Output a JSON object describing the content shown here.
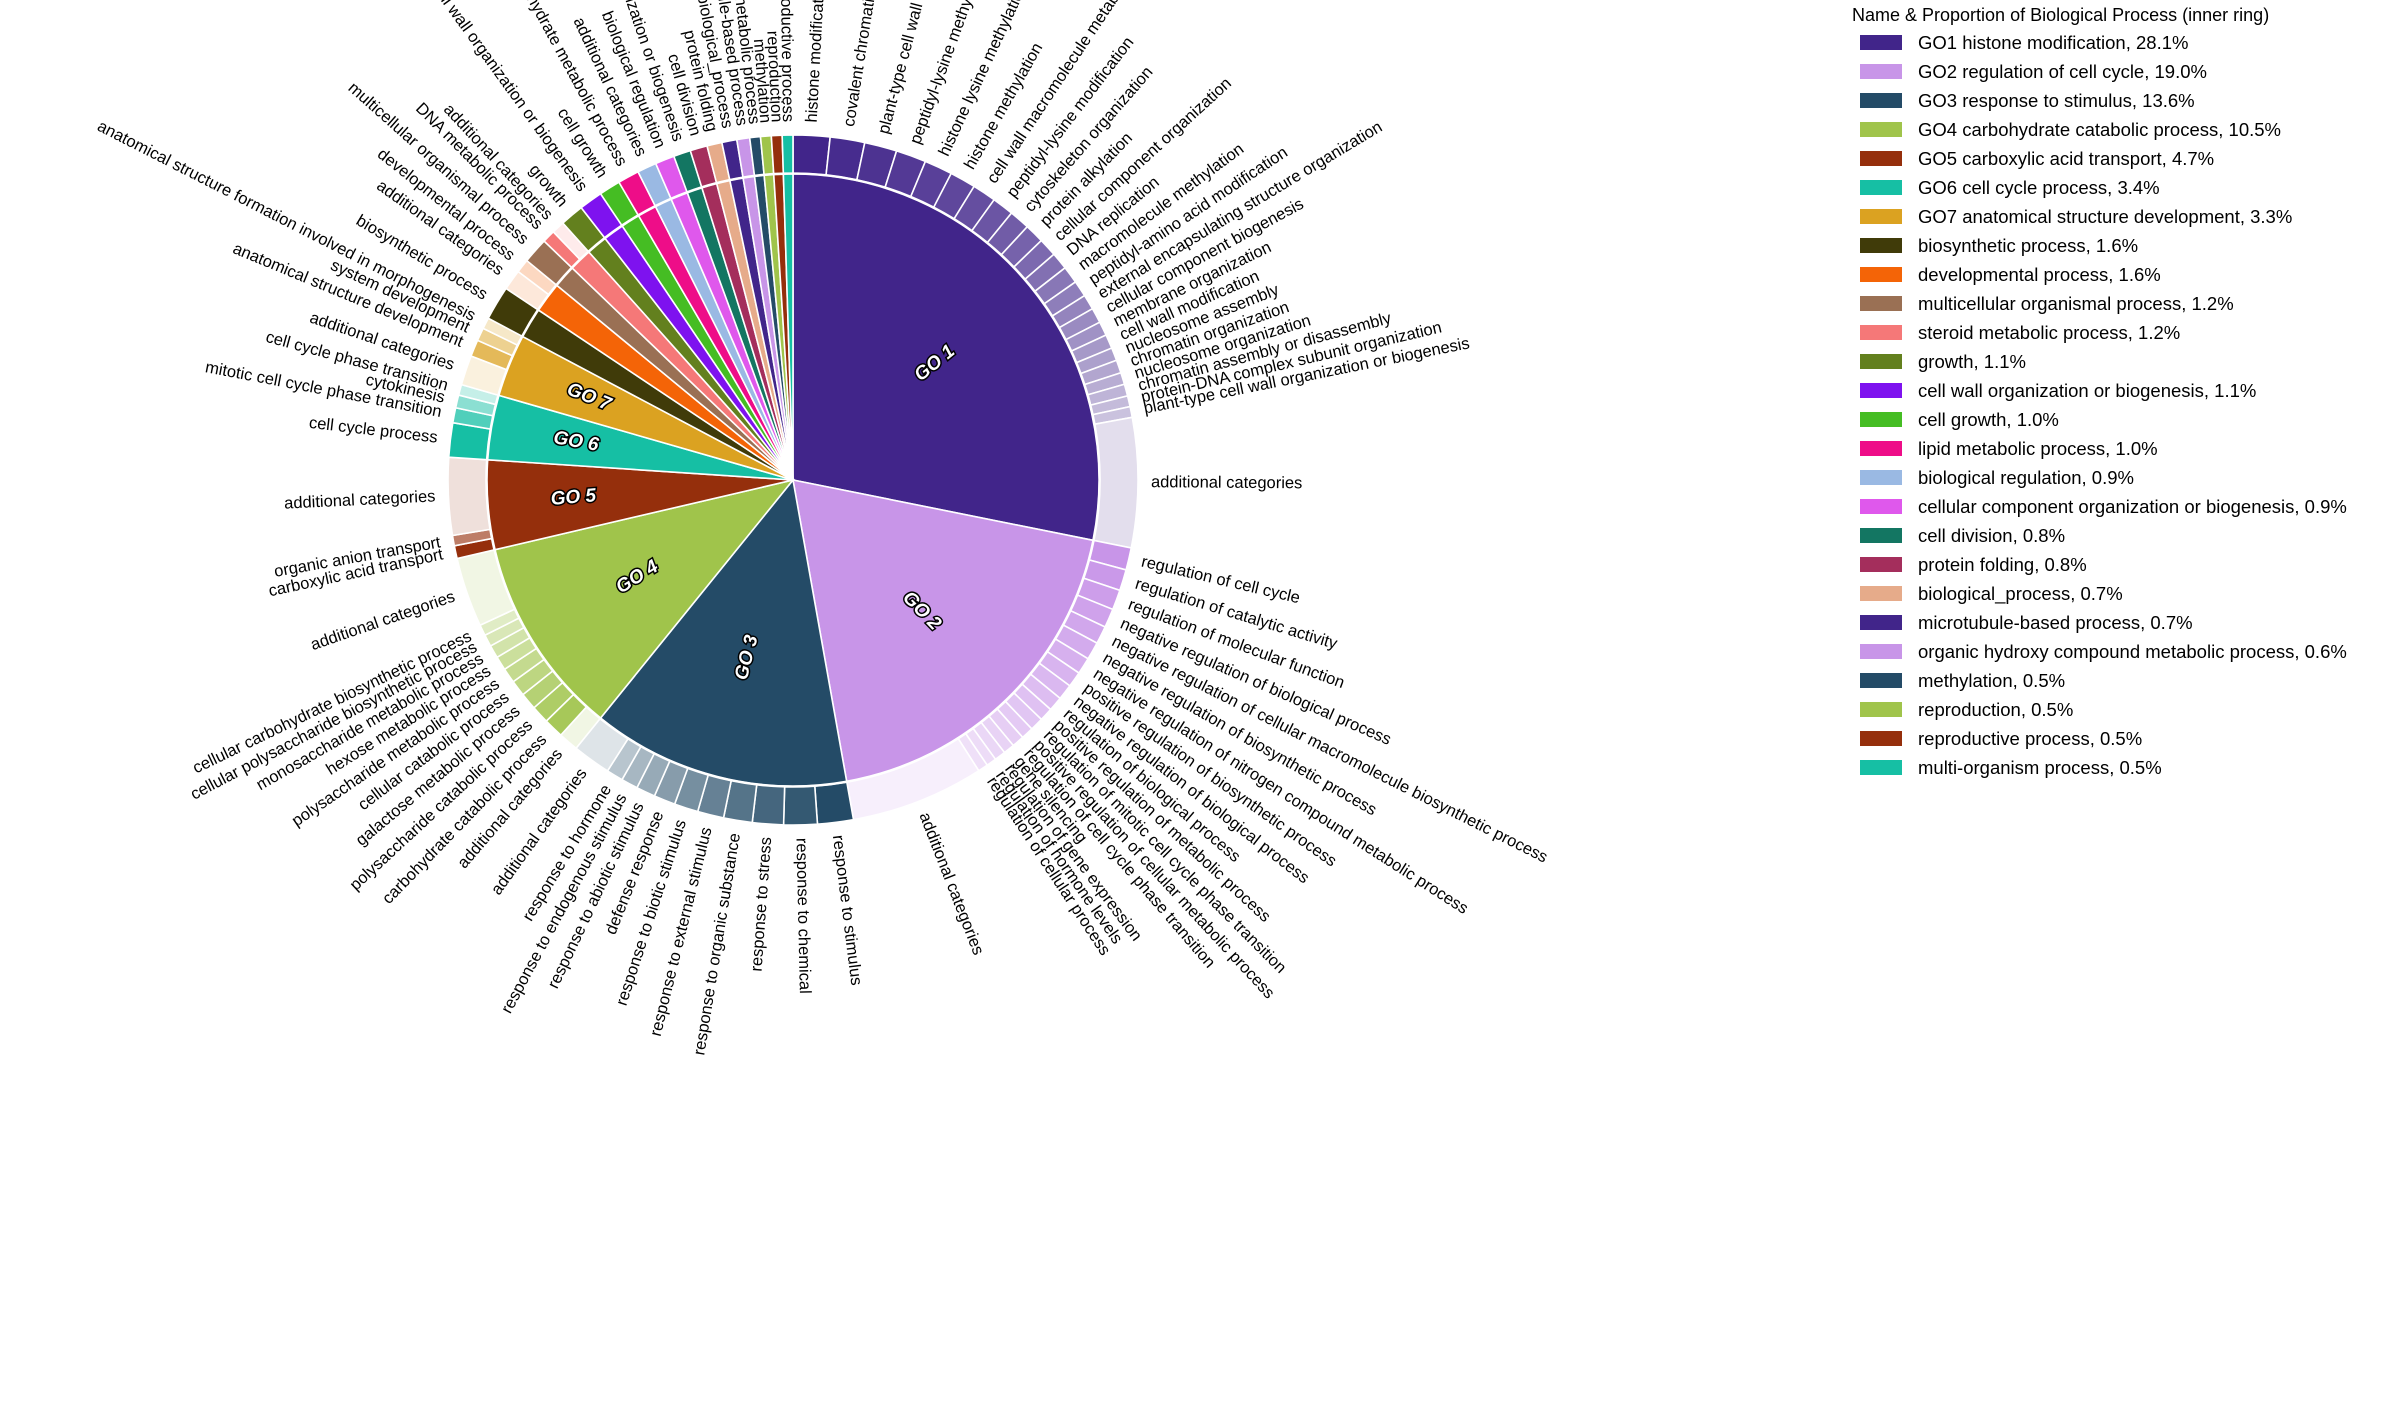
{
  "legend": {
    "title": "Name & Proportion of Biological Process (inner ring)"
  },
  "chart_data": {
    "type": "pie",
    "title": "",
    "inner_ring": [
      {
        "id": "GO 1",
        "name": "GO1 histone modification",
        "value": 28.1,
        "label": "GO1 histone modification, 28.1%",
        "color": "#41258a"
      },
      {
        "id": "GO 2",
        "name": "GO2 regulation of cell cycle",
        "value": 19.0,
        "label": "GO2 regulation of cell cycle, 19.0%",
        "color": "#c895e8"
      },
      {
        "id": "GO 3",
        "name": "GO3 response to stimulus",
        "value": 13.6,
        "label": "GO3 response to stimulus, 13.6%",
        "color": "#244b67"
      },
      {
        "id": "GO 4",
        "name": "GO4 carbohydrate catabolic process",
        "value": 10.5,
        "label": "GO4 carbohydrate catabolic process, 10.5%",
        "color": "#a0c44b"
      },
      {
        "id": "GO 5",
        "name": "GO5 carboxylic acid transport",
        "value": 4.7,
        "label": "GO5 carboxylic acid transport, 4.7%",
        "color": "#952f0c"
      },
      {
        "id": "GO 6",
        "name": "GO6 cell cycle process",
        "value": 3.4,
        "label": "GO6 cell cycle process, 3.4%",
        "color": "#16bfa4"
      },
      {
        "id": "GO 7",
        "name": "GO7 anatomical structure development",
        "value": 3.3,
        "label": "GO7 anatomical structure development, 3.3%",
        "color": "#dba221"
      },
      {
        "id": "",
        "name": "biosynthetic process",
        "value": 1.6,
        "label": "biosynthetic process, 1.6%",
        "color": "#403b09"
      },
      {
        "id": "",
        "name": "developmental process",
        "value": 1.6,
        "label": "developmental process, 1.6%",
        "color": "#f46407"
      },
      {
        "id": "",
        "name": "multicellular organismal process",
        "value": 1.2,
        "label": "multicellular organismal process, 1.2%",
        "color": "#9a7054"
      },
      {
        "id": "",
        "name": "steroid metabolic process",
        "value": 1.2,
        "label": "steroid metabolic process, 1.2%",
        "color": "#f57878"
      },
      {
        "id": "",
        "name": "growth",
        "value": 1.1,
        "label": "growth, 1.1%",
        "color": "#63801e"
      },
      {
        "id": "",
        "name": "cell wall organization or biogenesis",
        "value": 1.1,
        "label": "cell wall organization or biogenesis, 1.1%",
        "color": "#7e12ef"
      },
      {
        "id": "",
        "name": "cell growth",
        "value": 1.0,
        "label": "cell growth, 1.0%",
        "color": "#45bd23"
      },
      {
        "id": "",
        "name": "lipid metabolic process",
        "value": 1.0,
        "label": "lipid metabolic process, 1.0%",
        "color": "#ee0d88"
      },
      {
        "id": "",
        "name": "biological regulation",
        "value": 0.9,
        "label": "biological regulation, 0.9%",
        "color": "#9ab9e3"
      },
      {
        "id": "",
        "name": "cellular component organization or biogenesis",
        "value": 0.9,
        "label": "cellular component organization or biogenesis, 0.9%",
        "color": "#df58ec"
      },
      {
        "id": "",
        "name": "cell division",
        "value": 0.8,
        "label": "cell division, 0.8%",
        "color": "#137662"
      },
      {
        "id": "",
        "name": "protein folding",
        "value": 0.8,
        "label": "protein folding, 0.8%",
        "color": "#a42e5c"
      },
      {
        "id": "",
        "name": "biological_process",
        "value": 0.7,
        "label": "biological_process, 0.7%",
        "color": "#e6ab8a"
      },
      {
        "id": "",
        "name": "microtubule-based process",
        "value": 0.7,
        "label": "microtubule-based process, 0.7%",
        "color": "#41258a"
      },
      {
        "id": "",
        "name": "organic hydroxy compound metabolic process",
        "value": 0.6,
        "label": "organic hydroxy compound metabolic process, 0.6%",
        "color": "#c895e8"
      },
      {
        "id": "",
        "name": "methylation",
        "value": 0.5,
        "label": "methylation, 0.5%",
        "color": "#244b67"
      },
      {
        "id": "",
        "name": "reproduction",
        "value": 0.5,
        "label": "reproduction, 0.5%",
        "color": "#a0c44b"
      },
      {
        "id": "",
        "name": "reproductive process",
        "value": 0.5,
        "label": "reproductive process, 0.5%",
        "color": "#952f0c"
      },
      {
        "id": "",
        "name": "multi-organism process",
        "value": 0.5,
        "label": "multi-organism process, 0.5%",
        "color": "#16bfa4"
      }
    ],
    "outer_ring": [
      {
        "group": 0,
        "labels": [
          "histone modification",
          "covalent chromatin modification",
          "plant-type cell wall organization",
          "peptidyl-lysine methylation",
          "histone lysine methylation",
          "histone methylation",
          "cell wall macromolecule metabolic process",
          "peptidyl-lysine modification",
          "cytoskeleton organization",
          "protein alkylation",
          "cellular component organization",
          "DNA replication",
          "macromolecule methylation",
          "peptidyl-amino acid modification",
          "external encapsulating structure organization",
          "cellular component biogenesis",
          "membrane organization",
          "cell wall modification",
          "nucleosome assembly",
          "chromatin organization",
          "nucleosome organization",
          "chromatin assembly or disassembly",
          "protein-DNA complex subunit organization",
          "plant-type cell wall organization or biogenesis",
          "additional categories"
        ],
        "weights": [
          1.7,
          1.6,
          1.5,
          1.4,
          1.3,
          1.2,
          1.1,
          1.0,
          0.95,
          0.9,
          0.85,
          0.8,
          0.8,
          0.75,
          0.7,
          0.7,
          0.65,
          0.65,
          0.6,
          0.6,
          0.55,
          0.55,
          0.5,
          0.5,
          6.0
        ]
      },
      {
        "group": 1,
        "labels": [
          "regulation of cell cycle",
          "regulation of catalytic activity",
          "regulation of molecular function",
          "negative regulation of biological process",
          "negative regulation of cellular macromolecule biosynthetic process",
          "negative regulation of biosynthetic process",
          "negative regulation of nitrogen compound metabolic process",
          "positive regulation of biosynthetic process",
          "negative regulation of biological process",
          "regulation of biological process",
          "positive regulation of metabolic process",
          "regulation of mitotic cell cycle phase transition",
          "positive regulation of cellular metabolic process",
          "regulation of cell cycle phase transition",
          "gene silencing",
          "regulation of gene expression",
          "regulation of hormone levels",
          "regulation of cellular process",
          "additional categories"
        ],
        "weights": [
          1.0,
          0.95,
          0.9,
          0.85,
          0.8,
          0.8,
          0.75,
          0.7,
          0.7,
          0.65,
          0.6,
          0.6,
          0.55,
          0.55,
          0.5,
          0.5,
          0.45,
          0.45,
          6.0
        ]
      },
      {
        "group": 2,
        "labels": [
          "response to stimulus",
          "response to chemical",
          "response to stress",
          "response to organic substance",
          "response to external stimulus",
          "response to biotic stimulus",
          "defense response",
          "response to abiotic stimulus",
          "response to endogenous stimulus",
          "response to hormone",
          "additional categories"
        ],
        "weights": [
          1.5,
          1.4,
          1.3,
          1.2,
          1.1,
          1.0,
          0.9,
          0.8,
          0.7,
          0.7,
          1.6
        ]
      },
      {
        "group": 3,
        "labels": [
          "additional categories",
          "carbohydrate catabolic process",
          "polysaccharide catabolic process",
          "galactose metabolic process",
          "cellular catabolic process",
          "polysaccharide metabolic process",
          "hexose metabolic process",
          "monosaccharide metabolic process",
          "cellular polysaccharide biosynthetic process",
          "cellular carbohydrate biosynthetic process",
          "additional categories"
        ],
        "weights": [
          1.0,
          1.0,
          0.9,
          0.85,
          0.8,
          0.75,
          0.7,
          0.65,
          0.6,
          0.55,
          3.5
        ]
      },
      {
        "group": 4,
        "labels": [
          "carboxylic acid transport",
          "organic anion transport",
          "additional categories"
        ],
        "weights": [
          1.0,
          0.8,
          6.0
        ]
      },
      {
        "group": 5,
        "labels": [
          "cell cycle process",
          "mitotic cell cycle phase transition",
          "cytokinesis",
          "cell cycle phase transition"
        ],
        "weights": [
          1.6,
          0.7,
          0.6,
          0.5
        ]
      },
      {
        "group": 6,
        "labels": [
          "additional categories",
          "anatomical structure development",
          "system development",
          "anatomical structure formation involved in morphogenesis"
        ],
        "weights": [
          1.6,
          0.9,
          0.7,
          0.6
        ]
      },
      {
        "group": 7,
        "labels": [
          "biosynthetic process"
        ],
        "weights": [
          1
        ]
      },
      {
        "group": 8,
        "labels": [
          "additional categories",
          "developmental process"
        ],
        "weights": [
          1.2,
          0.8
        ]
      },
      {
        "group": 9,
        "labels": [
          "multicellular organismal process"
        ],
        "weights": [
          1
        ]
      },
      {
        "group": 10,
        "labels": [
          "DNA metabolic process",
          "additional categories"
        ],
        "weights": [
          0.5,
          0.5
        ]
      },
      {
        "group": 11,
        "labels": [
          "growth"
        ],
        "weights": [
          1
        ]
      },
      {
        "group": 12,
        "labels": [
          "cell wall organization or biogenesis"
        ],
        "weights": [
          1
        ]
      },
      {
        "group": 13,
        "labels": [
          "cell growth"
        ],
        "weights": [
          1
        ]
      },
      {
        "group": 14,
        "labels": [
          "carbohydrate metabolic process"
        ],
        "weights": [
          1
        ]
      },
      {
        "group": 15,
        "labels": [
          "additional categories"
        ],
        "weights": [
          1
        ]
      },
      {
        "group": 16,
        "labels": [
          "biological regulation"
        ],
        "weights": [
          1
        ]
      },
      {
        "group": 17,
        "labels": [
          "cellular component organization or biogenesis"
        ],
        "weights": [
          1
        ]
      },
      {
        "group": 18,
        "labels": [
          "cell division"
        ],
        "weights": [
          1
        ]
      },
      {
        "group": 19,
        "labels": [
          "protein folding"
        ],
        "weights": [
          1
        ]
      },
      {
        "group": 20,
        "labels": [
          "biological_process"
        ],
        "weights": [
          1
        ]
      },
      {
        "group": 21,
        "labels": [
          "microtubule-based process"
        ],
        "weights": [
          1
        ]
      },
      {
        "group": 22,
        "labels": [
          "organic hydroxy compound metabolic process"
        ],
        "weights": [
          1
        ]
      },
      {
        "group": 23,
        "labels": [
          "methylation"
        ],
        "weights": [
          1
        ]
      },
      {
        "group": 24,
        "labels": [
          "reproduction"
        ],
        "weights": [
          1
        ]
      },
      {
        "group": 25,
        "labels": [
          "reproductive process"
        ],
        "weights": [
          1
        ]
      },
      {
        "group": 26,
        "labels": [
          "multi-organism process"
        ],
        "weights": [
          1
        ]
      }
    ]
  }
}
